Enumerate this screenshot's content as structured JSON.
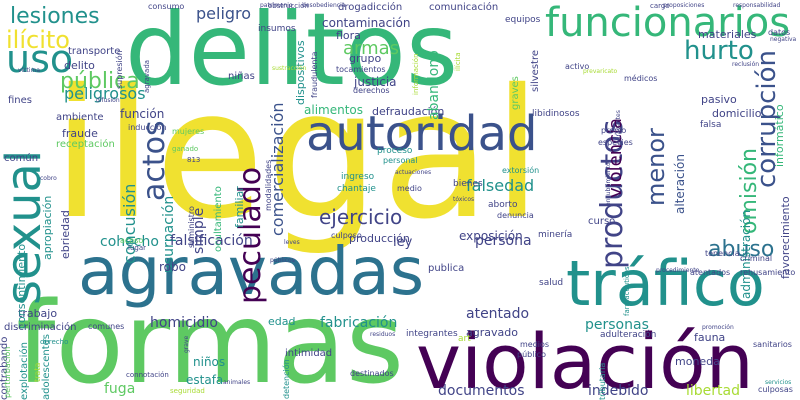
{
  "colors": {
    "yellow": "#f0e130",
    "green": "#5ec962",
    "lime": "#a8db34",
    "teal": "#21918c",
    "tealdark": "#2c728e",
    "blue": "#3b528b",
    "navy": "#414487",
    "purple": "#440154",
    "mint": "#35b779"
  },
  "words": [
    {
      "text": "ilegal",
      "c": "yellow"
    },
    {
      "text": "delitos",
      "c": "mint"
    },
    {
      "text": "formas",
      "c": "green"
    },
    {
      "text": "violación",
      "c": "purple"
    },
    {
      "text": "agravadas",
      "c": "tealdark"
    },
    {
      "text": "tráfico",
      "c": "teal"
    },
    {
      "text": "autoridad",
      "c": "blue"
    },
    {
      "text": "funcionarios",
      "c": "mint"
    },
    {
      "text": "sexual",
      "c": "teal"
    },
    {
      "text": "lesiones",
      "c": "teal"
    },
    {
      "text": "ilícito",
      "c": "yellow"
    },
    {
      "text": "uso",
      "c": "teal"
    },
    {
      "text": "pública",
      "c": "green"
    },
    {
      "text": "peligrosos",
      "c": "teal"
    },
    {
      "text": "hurto",
      "c": "teal"
    },
    {
      "text": "corrupción",
      "c": "blue"
    },
    {
      "text": "peculado",
      "c": "purple"
    },
    {
      "text": "actos",
      "c": "blue"
    },
    {
      "text": "productos",
      "c": "navy"
    },
    {
      "text": "omisión",
      "c": "mint"
    },
    {
      "text": "abuso",
      "c": "tealdark"
    },
    {
      "text": "menor",
      "c": "blue"
    },
    {
      "text": "ejercicio",
      "c": "navy"
    },
    {
      "text": "falsedad",
      "c": "teal"
    },
    {
      "text": "armas",
      "c": "green"
    },
    {
      "text": "violencia",
      "c": "purple"
    },
    {
      "text": "peligro",
      "c": "blue"
    },
    {
      "text": "concusión",
      "c": "teal"
    },
    {
      "text": "usurpación",
      "c": "teal"
    },
    {
      "text": "simple",
      "c": "navy"
    },
    {
      "text": "comercialización",
      "c": "blue"
    },
    {
      "text": "cohecho",
      "c": "teal"
    },
    {
      "text": "falsificación",
      "c": "navy"
    },
    {
      "text": "persona",
      "c": "navy"
    },
    {
      "text": "homicidio",
      "c": "navy"
    },
    {
      "text": "fabricación",
      "c": "teal"
    },
    {
      "text": "atentado",
      "c": "navy"
    },
    {
      "text": "personas",
      "c": "teal"
    },
    {
      "text": "documentos",
      "c": "navy"
    },
    {
      "text": "indebido",
      "c": "navy"
    },
    {
      "text": "libertad",
      "c": "lime"
    },
    {
      "text": "fuga",
      "c": "green"
    },
    {
      "text": "estafa",
      "c": "teal"
    },
    {
      "text": "niños",
      "c": "teal"
    },
    {
      "text": "contaminación",
      "c": "navy"
    },
    {
      "text": "justicia",
      "c": "navy"
    },
    {
      "text": "alteración",
      "c": "blue"
    },
    {
      "text": "administración",
      "c": "teal"
    },
    {
      "text": "exposición",
      "c": "navy"
    },
    {
      "text": "ley",
      "c": "navy"
    },
    {
      "text": "robo",
      "c": "navy"
    },
    {
      "text": "función",
      "c": "navy"
    },
    {
      "text": "fraude",
      "c": "navy"
    },
    {
      "text": "alimentos",
      "c": "mint"
    },
    {
      "text": "defraudación",
      "c": "navy"
    },
    {
      "text": "informático",
      "c": "mint"
    },
    {
      "text": "favorecimiento",
      "c": "navy"
    },
    {
      "text": "materiales",
      "c": "navy"
    },
    {
      "text": "pasivo",
      "c": "navy"
    },
    {
      "text": "domicilio",
      "c": "navy"
    },
    {
      "text": "flora",
      "c": "navy"
    },
    {
      "text": "grupo",
      "c": "navy"
    },
    {
      "text": "producción",
      "c": "navy"
    },
    {
      "text": "publica",
      "c": "navy"
    },
    {
      "text": "trabajo",
      "c": "navy"
    },
    {
      "text": "edad",
      "c": "teal"
    },
    {
      "text": "fauna",
      "c": "navy"
    },
    {
      "text": "moneda",
      "c": "navy"
    },
    {
      "text": "curso",
      "c": "navy"
    },
    {
      "text": "familiar",
      "c": "teal"
    },
    {
      "text": "ebriedad",
      "c": "navy"
    },
    {
      "text": "apropiación",
      "c": "teal"
    },
    {
      "text": "consentimiento",
      "c": "teal"
    },
    {
      "text": "común",
      "c": "navy"
    },
    {
      "text": "discriminación",
      "c": "navy"
    },
    {
      "text": "adolescentes",
      "c": "teal"
    },
    {
      "text": "explotación",
      "c": "teal"
    },
    {
      "text": "contrabando",
      "c": "navy"
    },
    {
      "text": "ocultamiento",
      "c": "mint"
    },
    {
      "text": "agravado",
      "c": "navy"
    },
    {
      "text": "intimidad",
      "c": "navy"
    },
    {
      "text": "transporte",
      "c": "navy"
    },
    {
      "text": "ambiente",
      "c": "navy"
    },
    {
      "text": "receptación",
      "c": "green"
    },
    {
      "text": "delito",
      "c": "navy"
    },
    {
      "text": "fines",
      "c": "navy"
    },
    {
      "text": "drogadicción",
      "c": "navy"
    },
    {
      "text": "comunicación",
      "c": "navy"
    },
    {
      "text": "dispositivos",
      "c": "teal"
    },
    {
      "text": "equipos",
      "c": "navy"
    },
    {
      "text": "insumos",
      "c": "navy"
    },
    {
      "text": "niñas",
      "c": "navy"
    },
    {
      "text": "abandono",
      "c": "mint"
    },
    {
      "text": "graves",
      "c": "green"
    },
    {
      "text": "silvestre",
      "c": "navy"
    },
    {
      "text": "libidinosos",
      "c": "navy"
    },
    {
      "text": "chantaje",
      "c": "teal"
    },
    {
      "text": "ingreso",
      "c": "teal"
    },
    {
      "text": "bienes",
      "c": "navy"
    },
    {
      "text": "aborto",
      "c": "navy"
    },
    {
      "text": "denuncia",
      "c": "navy"
    },
    {
      "text": "minería",
      "c": "navy"
    },
    {
      "text": "salud",
      "c": "navy"
    },
    {
      "text": "medios",
      "c": "navy"
    },
    {
      "text": "atentados",
      "c": "navy"
    },
    {
      "text": "rehusamiento",
      "c": "navy"
    },
    {
      "text": "sanitarios",
      "c": "navy"
    },
    {
      "text": "tenencia",
      "c": "navy"
    },
    {
      "text": "criminal",
      "c": "navy"
    },
    {
      "text": "médicos",
      "c": "navy"
    },
    {
      "text": "falsa",
      "c": "navy"
    },
    {
      "text": "activo",
      "c": "navy"
    },
    {
      "text": "extorsión",
      "c": "teal"
    },
    {
      "text": "proceso",
      "c": "teal"
    },
    {
      "text": "personal",
      "c": "teal"
    },
    {
      "text": "medio",
      "c": "navy"
    },
    {
      "text": "culposo",
      "c": "navy"
    },
    {
      "text": "especies",
      "c": "navy"
    },
    {
      "text": "propio",
      "c": "navy"
    },
    {
      "text": "art",
      "c": "lime"
    },
    {
      "text": "público",
      "c": "navy"
    },
    {
      "text": "destinados",
      "c": "navy"
    },
    {
      "text": "integrantes",
      "c": "navy"
    },
    {
      "text": "adulteración",
      "c": "navy"
    },
    {
      "text": "comunes",
      "c": "navy"
    },
    {
      "text": "tocamientos",
      "c": "navy"
    },
    {
      "text": "derechos",
      "c": "navy"
    },
    {
      "text": "inducción",
      "c": "navy"
    },
    {
      "text": "mujeres",
      "c": "green"
    },
    {
      "text": "modalidades",
      "c": "navy"
    },
    {
      "text": "suministro",
      "c": "navy"
    },
    {
      "text": "acoso",
      "c": "green"
    },
    {
      "text": "lugar",
      "c": "navy"
    },
    {
      "text": "detención",
      "c": "teal"
    },
    {
      "text": "perturbación",
      "c": "green"
    },
    {
      "text": "consumo",
      "c": "navy"
    },
    {
      "text": "cargo",
      "c": "navy"
    },
    {
      "text": "datos",
      "c": "navy"
    },
    {
      "text": "culposas",
      "c": "navy"
    },
    {
      "text": "fraudulenta",
      "c": "navy"
    },
    {
      "text": "supresión",
      "c": "navy"
    },
    {
      "text": "agravada",
      "c": "navy"
    },
    {
      "text": "seguridad",
      "c": "lime"
    },
    {
      "text": "tributaria",
      "c": "teal"
    },
    {
      "text": "connotación",
      "c": "navy"
    },
    {
      "text": "obstrucción",
      "c": "navy"
    },
    {
      "text": "proposiciones",
      "c": "navy"
    },
    {
      "text": "responsabilidad",
      "c": "navy"
    },
    {
      "text": "patrimonio",
      "c": "navy"
    },
    {
      "text": "desobediencia",
      "c": "navy"
    },
    {
      "text": "víctima",
      "c": "navy"
    },
    {
      "text": "difusión",
      "c": "navy"
    },
    {
      "text": "prevaricato",
      "c": "lime"
    },
    {
      "text": "información",
      "c": "lime"
    },
    {
      "text": "sustracción",
      "c": "lime"
    },
    {
      "text": "ilícita",
      "c": "lime"
    },
    {
      "text": "trata",
      "c": "lime"
    },
    {
      "text": "derecho",
      "c": "teal"
    },
    {
      "text": "tóxicos",
      "c": "navy"
    },
    {
      "text": "animales",
      "c": "navy"
    },
    {
      "text": "reclusión",
      "c": "navy"
    },
    {
      "text": "residuos",
      "c": "navy"
    },
    {
      "text": "farmacéuticos",
      "c": "teal"
    },
    {
      "text": "procedimiento",
      "c": "navy"
    },
    {
      "text": "promoción",
      "c": "navy"
    },
    {
      "text": "servicios",
      "c": "teal"
    },
    {
      "text": "negativa",
      "c": "navy"
    },
    {
      "text": "ganado",
      "c": "green"
    },
    {
      "text": "813",
      "c": "navy"
    },
    {
      "text": "cobro",
      "c": "navy"
    },
    {
      "text": "actuaciones",
      "c": "navy"
    },
    {
      "text": "encubrimiento",
      "c": "navy"
    },
    {
      "text": "agravantes",
      "c": "navy"
    },
    {
      "text": "grave",
      "c": "navy"
    },
    {
      "text": "leves",
      "c": "navy"
    },
    {
      "text": "públicos",
      "c": "navy"
    }
  ]
}
